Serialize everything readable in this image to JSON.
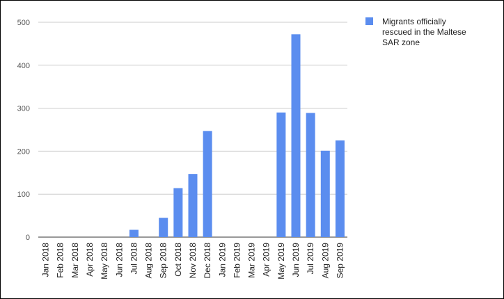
{
  "chart_data": {
    "type": "bar",
    "categories": [
      "Jan 2018",
      "Feb 2018",
      "Mar 2018",
      "Apr 2018",
      "May 2018",
      "Jun 2018",
      "Jul 2018",
      "Aug 2018",
      "Sep 2018",
      "Oct 2018",
      "Nov 2018",
      "Dec 2018",
      "Jan 2019",
      "Feb 2019",
      "Mar 2019",
      "Apr 2019",
      "May 2019",
      "Jun 2019",
      "Jul 2019",
      "Aug 2019",
      "Sep 2019"
    ],
    "series": [
      {
        "name": "Migrants officially rescued in the Maltese SAR zone",
        "legend_lines": [
          "Migrants officially",
          "rescued in the Maltese",
          "SAR zone"
        ],
        "color": "#5b8def",
        "values": [
          0,
          0,
          0,
          0,
          0,
          0,
          17,
          0,
          45,
          114,
          147,
          247,
          0,
          0,
          0,
          0,
          290,
          472,
          289,
          201,
          225
        ]
      }
    ],
    "yticks": [
      "0",
      "100",
      "200",
      "300",
      "400",
      "500"
    ],
    "ylim": [
      0,
      500
    ],
    "grid": true,
    "legend_position": "right",
    "title": "",
    "xlabel": "",
    "ylabel": ""
  }
}
